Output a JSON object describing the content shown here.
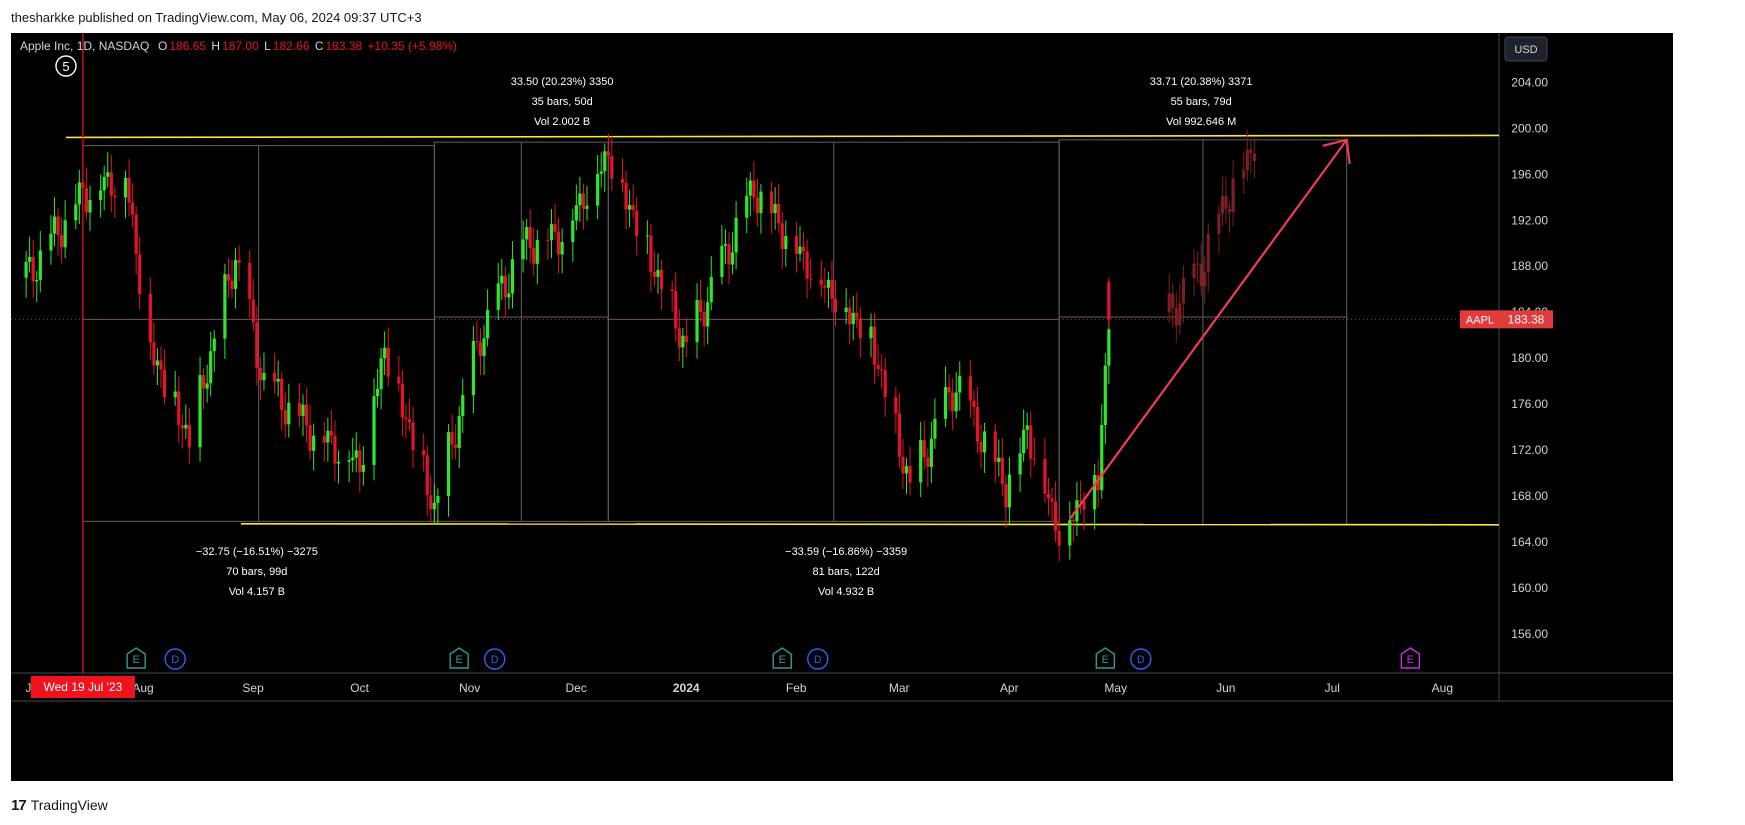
{
  "header": {
    "publisher_line": "thesharkke published on TradingView.com, May 06, 2024 09:37 UTC+3"
  },
  "footer": {
    "logo_mark": "17",
    "logo_text": "TradingView"
  },
  "symbol": {
    "title": "Apple Inc, 1D, NASDAQ",
    "open_label": "O",
    "open": "186.65",
    "high_label": "H",
    "high": "187.00",
    "low_label": "L",
    "low": "182.66",
    "close_label": "C",
    "close": "183.38",
    "change": "+10.35 (+5.98%)",
    "wave_label": "⑤"
  },
  "currency_button": "USD",
  "price_tag": {
    "ticker": "AAPL",
    "value": "183.38"
  },
  "cursor_date": "Wed 19 Jul '23",
  "measure_labels": [
    {
      "line1": "33.50 (20.23%) 3350",
      "line2": "35 bars, 50d",
      "line3": "Vol 2.002 B"
    },
    {
      "line1": "33.71 (20.38%) 3371",
      "line2": "55 bars, 79d",
      "line3": "Vol 992.646 M"
    },
    {
      "line1": "−32.75 (−16.51%) −3275",
      "line2": "70 bars, 99d",
      "line3": "Vol 4.157 B"
    },
    {
      "line1": "−33.59 (−16.86%) −3359",
      "line2": "81 bars, 122d",
      "line3": "Vol 4.932 B"
    }
  ],
  "event_badges": [
    "E",
    "D",
    "E",
    "D",
    "E",
    "D",
    "E",
    "D",
    "E"
  ],
  "colors": {
    "up": "#2ee62e",
    "down": "#e3132a",
    "projection": "#7a1f24",
    "resistance": "#ffe53b",
    "arrow": "#f23c50",
    "axis_text": "#d1d4dc",
    "cursor": "#f0131e",
    "earnings": "#2a9d8f",
    "dividend": "#2962ff",
    "future_earnings": "#c32ff0"
  },
  "chart_data": {
    "type": "candlestick",
    "title": "Apple Inc, 1D, NASDAQ",
    "yaxis_ticks": [
      156,
      160,
      164,
      168,
      172,
      176,
      180,
      184,
      188,
      192,
      196,
      200,
      204
    ],
    "ylim": [
      152.6,
      208.3
    ],
    "xaxis_ticks": [
      "Jul",
      "Aug",
      "Sep",
      "Oct",
      "Nov",
      "Dec",
      "2024",
      "Feb",
      "Mar",
      "Apr",
      "May",
      "Jun",
      "Jul",
      "Aug"
    ],
    "resistance_level": 199.3,
    "support_level": 165.5,
    "last_price": 183.38,
    "swing_points": [
      [
        "2023-07-03",
        187.0
      ],
      [
        "2023-07-19",
        194.5
      ],
      [
        "2023-07-31",
        196.0
      ],
      [
        "2023-08-07",
        181.0
      ],
      [
        "2023-08-18",
        173.0
      ],
      [
        "2023-08-31",
        189.0
      ],
      [
        "2023-09-08",
        178.0
      ],
      [
        "2023-09-21",
        174.0
      ],
      [
        "2023-10-05",
        171.0
      ],
      [
        "2023-10-12",
        181.0
      ],
      [
        "2023-10-26",
        167.0
      ],
      [
        "2023-11-08",
        182.0
      ],
      [
        "2023-11-20",
        190.0
      ],
      [
        "2023-12-01",
        191.0
      ],
      [
        "2023-12-14",
        198.0
      ],
      [
        "2024-01-05",
        181.0
      ],
      [
        "2024-01-24",
        195.0
      ],
      [
        "2024-02-09",
        188.0
      ],
      [
        "2024-02-26",
        182.0
      ],
      [
        "2024-03-08",
        169.0
      ],
      [
        "2024-03-21",
        178.0
      ],
      [
        "2024-04-04",
        169.0
      ],
      [
        "2024-04-10",
        174.0
      ],
      [
        "2024-04-19",
        165.0
      ],
      [
        "2024-04-30",
        170.0
      ],
      [
        "2024-05-03",
        183.38
      ]
    ],
    "projection_points": [
      [
        "2024-05-20",
        184.0
      ],
      [
        "2024-05-29",
        188.0
      ],
      [
        "2024-06-05",
        194.0
      ],
      [
        "2024-06-12",
        198.0
      ],
      [
        "2024-06-13",
        199.0
      ]
    ],
    "trend_arrow": {
      "from": [
        "2024-04-22",
        166.0
      ],
      "to": [
        "2024-07-09",
        199.0
      ]
    },
    "measurements": [
      {
        "from": "2023-07-19",
        "to": "2023-10-26",
        "change": -32.75,
        "pct": -16.51
      },
      {
        "from": "2023-10-26",
        "to": "2023-12-14",
        "change": 33.5,
        "pct": 20.23
      },
      {
        "from": "2023-12-14",
        "to": "2024-04-19",
        "change": -33.59,
        "pct": -16.86
      },
      {
        "from": "2024-04-19",
        "to": "2024-07-09",
        "change": 33.71,
        "pct": 20.38
      }
    ]
  }
}
